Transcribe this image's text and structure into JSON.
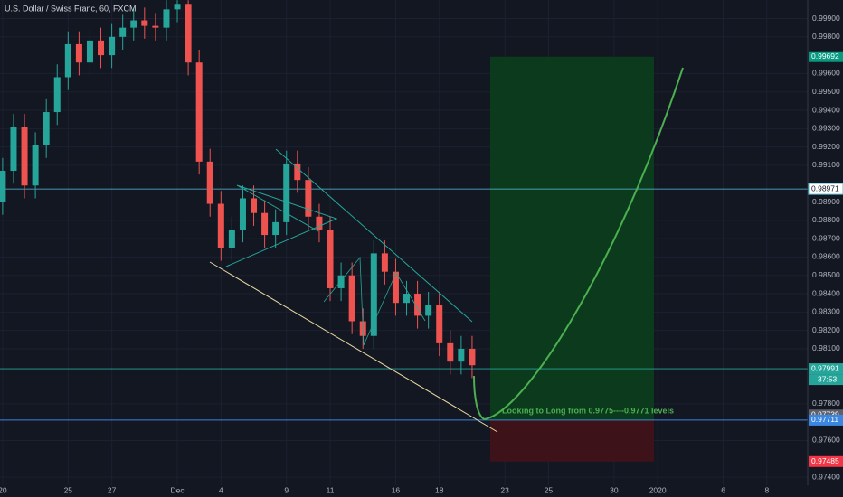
{
  "chart_data": {
    "type": "candlestick",
    "title": "U.S. Dollar / Swiss Franc, 60, FXCM",
    "x": [
      0,
      0.5,
      1,
      1.5,
      2,
      2.5,
      3,
      3.5,
      4,
      4.5,
      5,
      5.5,
      6,
      6.5,
      7,
      7.5,
      8,
      8.5,
      9,
      9.5,
      10,
      10.5,
      11,
      11.5,
      12,
      12.5,
      13,
      13.5,
      14,
      14.5,
      15,
      15.5,
      16,
      16.5,
      17,
      17.5,
      18,
      18.5,
      19,
      19.5,
      20,
      20.5,
      21,
      21.5
    ],
    "open": [
      0.989,
      0.9907,
      0.9931,
      0.9899,
      0.9921,
      0.9939,
      0.9958,
      0.9976,
      0.9966,
      0.9978,
      0.997,
      0.998,
      0.9985,
      0.9989,
      0.9986,
      0.9985,
      0.9995,
      0.9998,
      0.9966,
      0.9912,
      0.9889,
      0.9865,
      0.9875,
      0.9892,
      0.9884,
      0.9872,
      0.9879,
      0.9911,
      0.9902,
      0.9882,
      0.9875,
      0.9843,
      0.985,
      0.9825,
      0.9817,
      0.9862,
      0.9852,
      0.9835,
      0.984,
      0.9828,
      0.9834,
      0.9813,
      0.9803,
      0.981
    ],
    "high": [
      0.9914,
      0.9938,
      0.9938,
      0.9928,
      0.9946,
      0.9965,
      0.9983,
      0.9983,
      0.9985,
      0.9985,
      0.9987,
      0.9992,
      0.9996,
      0.9996,
      0.9993,
      1.0,
      1.0,
      1.0,
      0.9973,
      0.9919,
      0.9896,
      0.9882,
      0.9899,
      0.9899,
      0.9891,
      0.9886,
      0.9918,
      0.9918,
      0.9909,
      0.9889,
      0.9882,
      0.9857,
      0.9857,
      0.9832,
      0.9869,
      0.9869,
      0.9859,
      0.9847,
      0.9847,
      0.9841,
      0.9841,
      0.982,
      0.9817,
      0.9817
    ],
    "low": [
      0.9883,
      0.99,
      0.9892,
      0.9892,
      0.9914,
      0.9932,
      0.9951,
      0.9959,
      0.9959,
      0.9963,
      0.9963,
      0.9973,
      0.9978,
      0.9979,
      0.9978,
      0.9978,
      0.9988,
      0.9959,
      0.9905,
      0.9882,
      0.9858,
      0.9858,
      0.9868,
      0.9877,
      0.9865,
      0.9865,
      0.9872,
      0.9895,
      0.9875,
      0.9868,
      0.9836,
      0.9836,
      0.9818,
      0.981,
      0.981,
      0.9845,
      0.9828,
      0.9828,
      0.9821,
      0.9821,
      0.9806,
      0.9796,
      0.9796,
      0.9794
    ],
    "close": [
      0.9907,
      0.9931,
      0.9899,
      0.9921,
      0.9939,
      0.9958,
      0.9976,
      0.9966,
      0.9978,
      0.997,
      0.998,
      0.9985,
      0.9989,
      0.9986,
      0.9985,
      0.9995,
      0.9998,
      0.9966,
      0.9912,
      0.9889,
      0.9865,
      0.9875,
      0.9892,
      0.9884,
      0.9872,
      0.9879,
      0.9911,
      0.9902,
      0.9882,
      0.9875,
      0.9843,
      0.985,
      0.9825,
      0.9817,
      0.9862,
      0.9852,
      0.9835,
      0.984,
      0.9828,
      0.9834,
      0.9813,
      0.9803,
      0.981,
      0.9801
    ],
    "up_color": "#26a69a",
    "down_color": "#ef5350",
    "xlim": [
      -0.12,
      36.87
    ],
    "xticks": [
      {
        "value": 0,
        "label": "20"
      },
      {
        "value": 3,
        "label": "25"
      },
      {
        "value": 5,
        "label": "27"
      },
      {
        "value": 8,
        "label": "Dec"
      },
      {
        "value": 10,
        "label": "4"
      },
      {
        "value": 13,
        "label": "9"
      },
      {
        "value": 15,
        "label": "11"
      },
      {
        "value": 18,
        "label": "16"
      },
      {
        "value": 20,
        "label": "18"
      },
      {
        "value": 23,
        "label": "23"
      },
      {
        "value": 25,
        "label": "25"
      },
      {
        "value": 28,
        "label": "30"
      },
      {
        "value": 30,
        "label": "2020"
      },
      {
        "value": 33,
        "label": "6"
      },
      {
        "value": 35,
        "label": "8"
      }
    ],
    "ylim": [
      0.97356,
      1.00001
    ],
    "yticks": [
      {
        "value": 0.974,
        "label": "0.97400"
      },
      {
        "value": 0.976,
        "label": "0.97600"
      },
      {
        "value": 0.978,
        "label": "0.97800"
      },
      {
        "value": 0.981,
        "label": "0.98100"
      },
      {
        "value": 0.982,
        "label": "0.98200"
      },
      {
        "value": 0.983,
        "label": "0.98300"
      },
      {
        "value": 0.984,
        "label": "0.98400"
      },
      {
        "value": 0.985,
        "label": "0.98500"
      },
      {
        "value": 0.986,
        "label": "0.98600"
      },
      {
        "value": 0.987,
        "label": "0.98700"
      },
      {
        "value": 0.988,
        "label": "0.98800"
      },
      {
        "value": 0.989,
        "label": "0.98900"
      },
      {
        "value": 0.991,
        "label": "0.99100"
      },
      {
        "value": 0.992,
        "label": "0.99200"
      },
      {
        "value": 0.993,
        "label": "0.99300"
      },
      {
        "value": 0.994,
        "label": "0.99400"
      },
      {
        "value": 0.995,
        "label": "0.99500"
      },
      {
        "value": 0.996,
        "label": "0.99600"
      },
      {
        "value": 0.998,
        "label": "0.99800"
      },
      {
        "value": 0.999,
        "label": "0.99900"
      }
    ],
    "levels": [
      {
        "value": 0.98971,
        "color": "#5bc0de"
      },
      {
        "value": 0.97991,
        "color": "#26a69a"
      },
      {
        "value": 0.97739,
        "color": "#5d606b"
      }
    ],
    "countdown": "37:53",
    "position": {
      "target": 0.99692,
      "entry": 0.97711,
      "stop": 0.97485,
      "start": 22.33,
      "end": 29.83,
      "target_color": "#0b3b1c",
      "stop_color": "#3e1219",
      "entry_color": "#3a86e0"
    },
    "annotation": "Looking to Long from 0.9775----0.9771 levels"
  }
}
